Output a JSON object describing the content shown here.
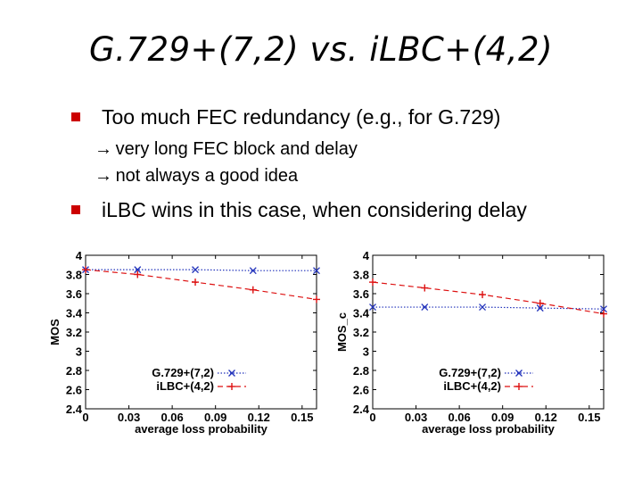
{
  "slide": {
    "title": "G.729+(7,2) vs. iLBC+(4,2)",
    "bullets": [
      {
        "text": "Too much FEC redundancy (e.g., for G.729)",
        "subs": [
          {
            "arrow": "→",
            "text": "very long FEC block and delay"
          },
          {
            "arrow": "→",
            "text": "not always a good idea"
          }
        ]
      },
      {
        "text": "iLBC wins in this case, when considering delay",
        "subs": []
      }
    ],
    "colors": {
      "bullet": "#cc0000",
      "g729": "#2233bb",
      "ilbc": "#dd1111"
    }
  },
  "chart_data": [
    {
      "type": "line",
      "xlabel": "average loss probability",
      "ylabel": "MOS",
      "xlim": [
        0,
        0.16
      ],
      "ylim": [
        2.4,
        4
      ],
      "xticks": [
        "0",
        "0.03",
        "0.06",
        "0.09",
        "0.12",
        "0.15"
      ],
      "xtick_values": [
        0,
        0.03,
        0.06,
        0.09,
        0.12,
        0.15
      ],
      "yticks": [
        "2.4",
        "2.6",
        "2.8",
        "3",
        "3.2",
        "3.4",
        "3.6",
        "3.8",
        "4"
      ],
      "ytick_values": [
        2.4,
        2.6,
        2.8,
        3.0,
        3.2,
        3.4,
        3.6,
        3.8,
        4.0
      ],
      "legend_position": "bottom-center",
      "series": [
        {
          "name": "G.729+(7,2)",
          "marker": "x",
          "style": "dotted",
          "color": "#2233bb",
          "x": [
            0,
            0.036,
            0.076,
            0.116,
            0.16
          ],
          "y": [
            3.85,
            3.85,
            3.85,
            3.84,
            3.84
          ]
        },
        {
          "name": "iLBC+(4,2)",
          "marker": "+",
          "style": "dashed",
          "color": "#dd1111",
          "x": [
            0,
            0.036,
            0.076,
            0.116,
            0.16
          ],
          "y": [
            3.85,
            3.8,
            3.72,
            3.64,
            3.54
          ]
        }
      ]
    },
    {
      "type": "line",
      "xlabel": "average loss probability",
      "ylabel": "MOS_c",
      "xlim": [
        0,
        0.16
      ],
      "ylim": [
        2.4,
        4
      ],
      "xticks": [
        "0",
        "0.03",
        "0.06",
        "0.09",
        "0.12",
        "0.15"
      ],
      "xtick_values": [
        0,
        0.03,
        0.06,
        0.09,
        0.12,
        0.15
      ],
      "yticks": [
        "2.4",
        "2.6",
        "2.8",
        "3",
        "3.2",
        "3.4",
        "3.6",
        "3.8",
        "4"
      ],
      "ytick_values": [
        2.4,
        2.6,
        2.8,
        3.0,
        3.2,
        3.4,
        3.6,
        3.8,
        4.0
      ],
      "legend_position": "bottom-center",
      "series": [
        {
          "name": "G.729+(7,2)",
          "marker": "x",
          "style": "dotted",
          "color": "#2233bb",
          "x": [
            0,
            0.036,
            0.076,
            0.116,
            0.16
          ],
          "y": [
            3.46,
            3.46,
            3.46,
            3.45,
            3.44
          ]
        },
        {
          "name": "iLBC+(4,2)",
          "marker": "+",
          "style": "dashed",
          "color": "#dd1111",
          "x": [
            0,
            0.036,
            0.076,
            0.116,
            0.16
          ],
          "y": [
            3.72,
            3.66,
            3.59,
            3.5,
            3.39
          ]
        }
      ]
    }
  ]
}
